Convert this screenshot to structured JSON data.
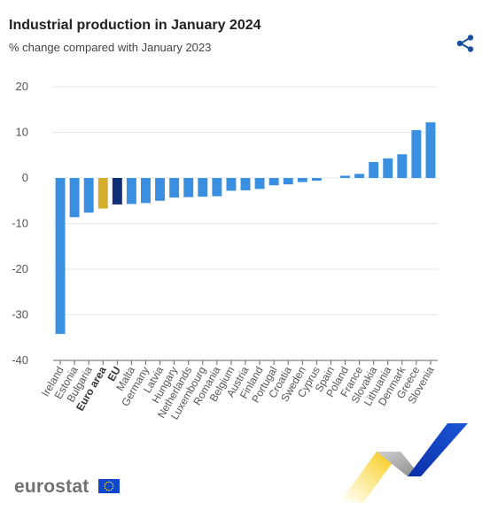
{
  "header": {
    "title": "Industrial production in January 2024",
    "subtitle": "% change compared with January 2023"
  },
  "share": {
    "icon": "share-icon"
  },
  "branding": {
    "logo_text": "eurostat",
    "flag_icon": "eu-flag-icon"
  },
  "colors": {
    "country": "#3b8fe0",
    "euro_area": "#d4ae2a",
    "eu": "#0f2e7a",
    "grid": "#e2e8ee",
    "axis": "#666666"
  },
  "chart_data": {
    "type": "bar",
    "title": "Industrial production in January 2024",
    "subtitle": "% change compared with January 2023",
    "ylim": [
      -40,
      20
    ],
    "yticks": [
      20,
      10,
      0,
      -10,
      -20,
      -30,
      -40
    ],
    "grid": true,
    "categories": [
      "Ireland",
      "Estonia",
      "Bulgaria",
      "Euro area",
      "EU",
      "Malta",
      "Germany",
      "Latvia",
      "Hungary",
      "Netherlands",
      "Luxembourg",
      "Romania",
      "Belgium",
      "Austria",
      "Finland",
      "Portugal",
      "Croatia",
      "Sweden",
      "Cyprus",
      "Spain",
      "Poland",
      "France",
      "Slovakia",
      "Lithuania",
      "Denmark",
      "Greece",
      "Slovenia"
    ],
    "values": [
      -34.2,
      -8.6,
      -7.6,
      -6.7,
      -5.8,
      -5.7,
      -5.5,
      -5.0,
      -4.3,
      -4.2,
      -4.1,
      -4.0,
      -2.8,
      -2.7,
      -2.4,
      -1.6,
      -1.4,
      -0.9,
      -0.6,
      0.0,
      0.5,
      0.9,
      3.5,
      4.3,
      5.2,
      10.5,
      12.2
    ],
    "highlight": {
      "Euro area": "euro_area",
      "EU": "eu"
    }
  }
}
